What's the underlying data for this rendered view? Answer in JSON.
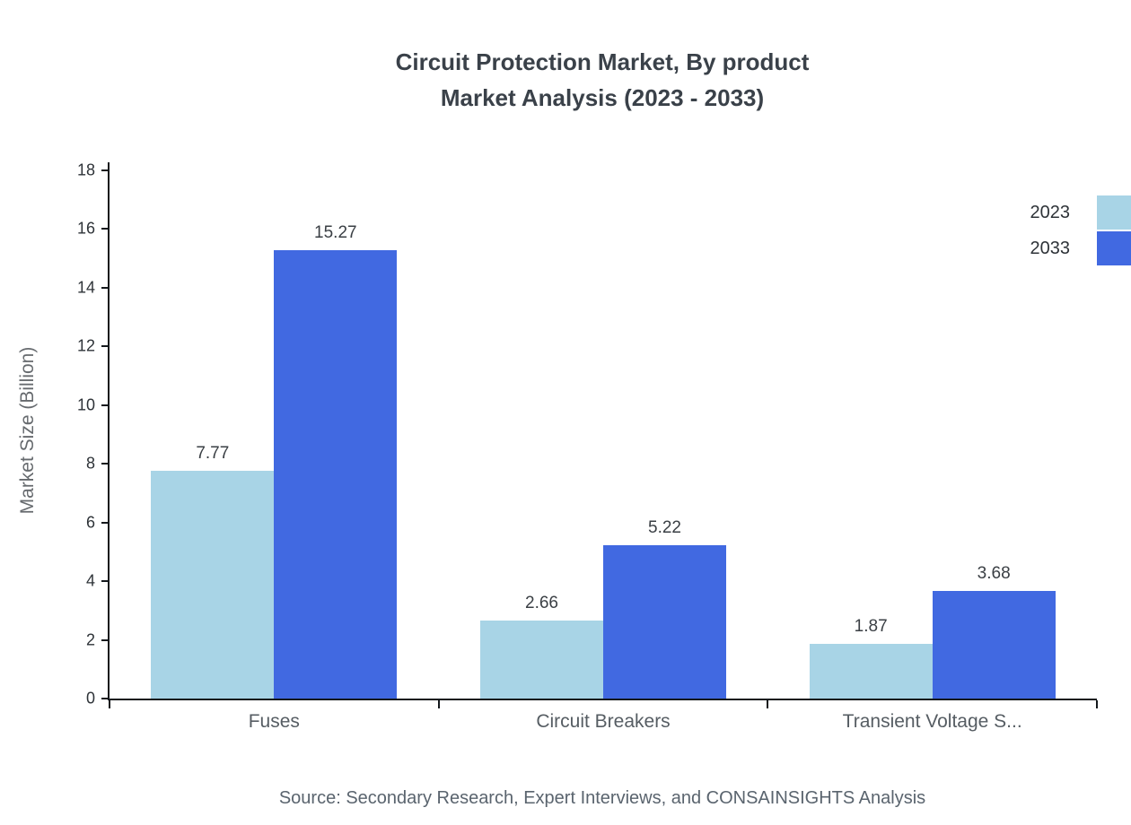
{
  "source": "Source: Secondary Research, Expert Interviews, and CONSAINSIGHTS Analysis",
  "chart_data": {
    "type": "bar",
    "title": "Circuit Protection Market, By product Market Analysis (2023 - 2033)",
    "title_lines": [
      "Circuit Protection Market, By product",
      "Market Analysis (2023 - 2033)"
    ],
    "categories": [
      "Fuses",
      "Circuit Breakers",
      "Transient Voltage S..."
    ],
    "series": [
      {
        "name": "2023",
        "color": "#a8d4e6",
        "values": [
          7.77,
          2.66,
          1.87
        ]
      },
      {
        "name": "2033",
        "color": "#4169e1",
        "values": [
          15.27,
          5.22,
          3.68
        ]
      }
    ],
    "xlabel": "",
    "ylabel": "Market Size (Billion)",
    "ylim": [
      0,
      18
    ],
    "ytick_step": 2,
    "grid": false,
    "legend_position": "top-right",
    "value_labels": true
  },
  "colors": {
    "axis": "#14181c",
    "series_2023": "#a8d4e6",
    "series_2033": "#4169e1"
  }
}
